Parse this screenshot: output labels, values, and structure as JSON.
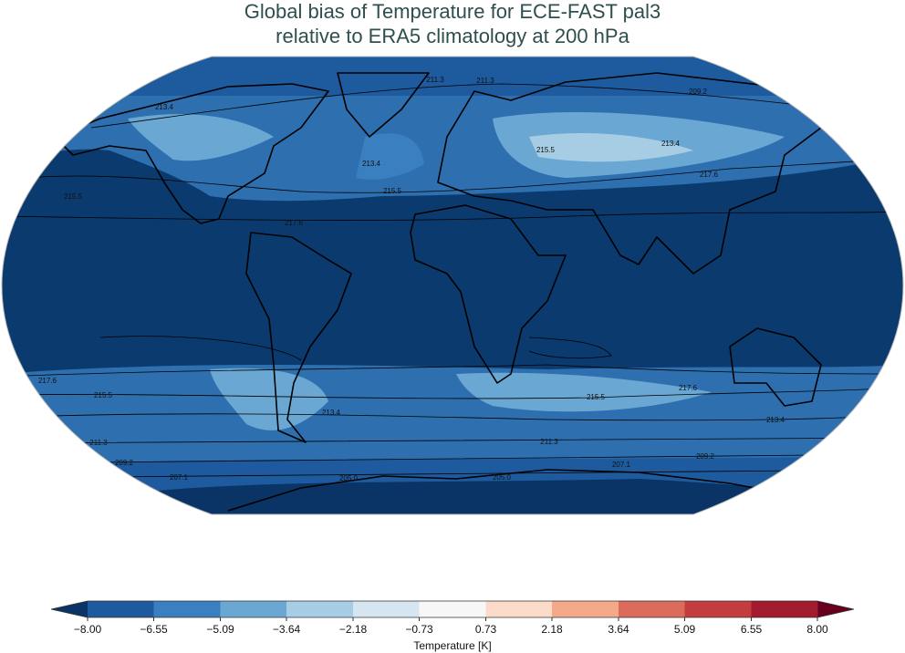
{
  "title": [
    "Global bias of Temperature for ECE-FAST pal3",
    "relative to ERA5 climatology at 200 hPa"
  ],
  "contour_labels": [
    "211.3",
    "211.3",
    "209.2",
    "213.4",
    "213.4",
    "215.5",
    "215.5",
    "213.4",
    "217.6",
    "215.5",
    "217.6",
    "217.6",
    "215.5",
    "213.4",
    "211.3",
    "209.2",
    "207.1",
    "205.0",
    "205.0",
    "211.3",
    "215.5",
    "217.6",
    "213.4",
    "209.2",
    "207.1"
  ],
  "colorbar": {
    "label": "Temperature [K]",
    "colors": [
      "#0b3466",
      "#1f5a9f",
      "#3a7fbf",
      "#6aa8d3",
      "#a7cde4",
      "#d6e6f1",
      "#f7f7f7",
      "#fbdccb",
      "#f4aa88",
      "#db6b5a",
      "#c33d3f",
      "#a11a2d",
      "#67001f"
    ],
    "ticks": [
      {
        "value": -8,
        "label": "−8.00"
      },
      {
        "value": -6.55,
        "label": "−6.55"
      },
      {
        "value": -5.09,
        "label": "−5.09"
      },
      {
        "value": -3.64,
        "label": "−3.64"
      },
      {
        "value": -2.18,
        "label": "−2.18"
      },
      {
        "value": -0.73,
        "label": "−0.73"
      },
      {
        "value": 0.73,
        "label": "0.73"
      },
      {
        "value": 2.18,
        "label": "2.18"
      },
      {
        "value": 3.64,
        "label": "3.64"
      },
      {
        "value": 5.09,
        "label": "5.09"
      },
      {
        "value": 6.55,
        "label": "6.55"
      },
      {
        "value": 8,
        "label": "8.00"
      }
    ]
  }
}
